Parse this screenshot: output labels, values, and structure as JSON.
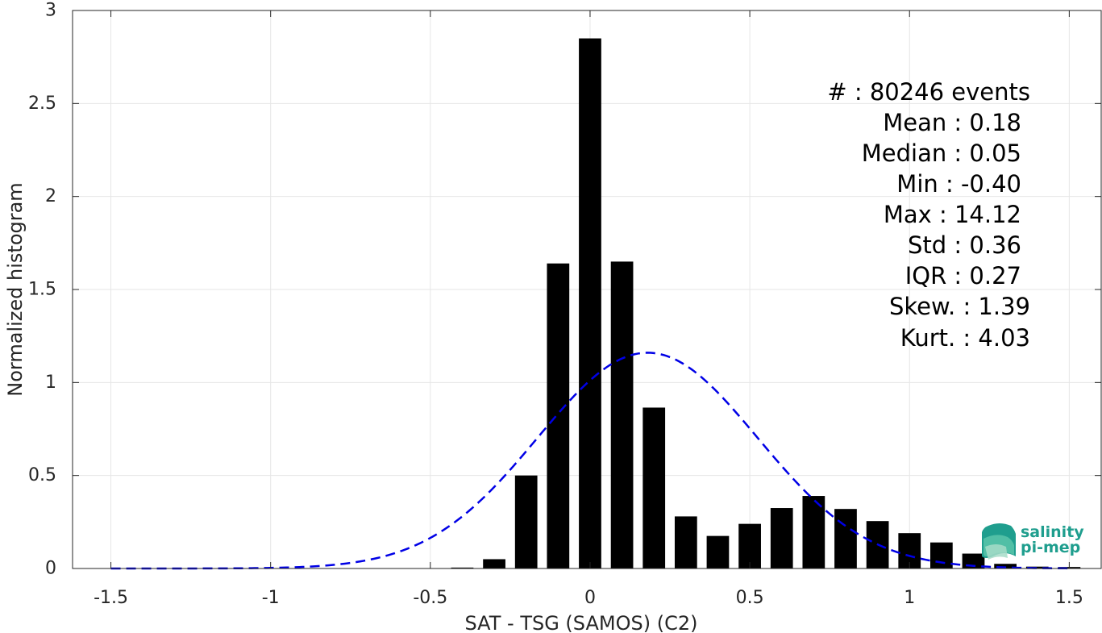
{
  "chart_data": {
    "type": "bar",
    "xlabel": "SAT - TSG (SAMOS) (C2)",
    "ylabel": "Normalized histogram",
    "xlim": [
      -1.62,
      1.6
    ],
    "ylim": [
      0,
      3
    ],
    "xticks": [
      -1.5,
      -1,
      -0.5,
      0,
      0.5,
      1,
      1.5
    ],
    "xtick_labels": [
      "-1.5",
      "-1",
      "-0.5",
      "0",
      "0.5",
      "1",
      "1.5"
    ],
    "yticks": [
      0,
      0.5,
      1,
      1.5,
      2,
      2.5,
      3
    ],
    "ytick_labels": [
      "0",
      "0.5",
      "1",
      "1.5",
      "2",
      "2.5",
      "3"
    ],
    "grid": true,
    "bar_width": 0.07,
    "bar_color": "#000000",
    "bars": [
      {
        "x": -0.4,
        "y": 0.005
      },
      {
        "x": -0.3,
        "y": 0.05
      },
      {
        "x": -0.2,
        "y": 0.5
      },
      {
        "x": -0.1,
        "y": 1.64
      },
      {
        "x": 0.0,
        "y": 2.85
      },
      {
        "x": 0.1,
        "y": 1.65
      },
      {
        "x": 0.2,
        "y": 0.865
      },
      {
        "x": 0.3,
        "y": 0.28
      },
      {
        "x": 0.4,
        "y": 0.175
      },
      {
        "x": 0.5,
        "y": 0.24
      },
      {
        "x": 0.6,
        "y": 0.325
      },
      {
        "x": 0.7,
        "y": 0.39
      },
      {
        "x": 0.8,
        "y": 0.32
      },
      {
        "x": 0.9,
        "y": 0.255
      },
      {
        "x": 1.0,
        "y": 0.19
      },
      {
        "x": 1.1,
        "y": 0.14
      },
      {
        "x": 1.2,
        "y": 0.08
      },
      {
        "x": 1.3,
        "y": 0.025
      },
      {
        "x": 1.4,
        "y": 0.01
      },
      {
        "x": 1.5,
        "y": 0.008
      }
    ],
    "fit_curve": {
      "type": "gaussian",
      "mean": 0.18,
      "std": 0.344,
      "peak": 1.16,
      "x_range": [
        -1.5,
        1.5
      ],
      "color": "#0000e6",
      "style": "dashed"
    },
    "stats": {
      "count": "#  : 80246 events",
      "mean": "Mean : 0.18",
      "median": "Median : 0.05",
      "min": "Min : -0.40",
      "max": "Max : 14.12",
      "std": "Std : 0.36",
      "iqr": "IQR : 0.27",
      "skew": "Skew. : 1.39",
      "kurt": "Kurt. : 4.03"
    }
  },
  "logo": {
    "line1": "salinity",
    "line2": "pi-mep",
    "color": "#1f9e8e"
  }
}
